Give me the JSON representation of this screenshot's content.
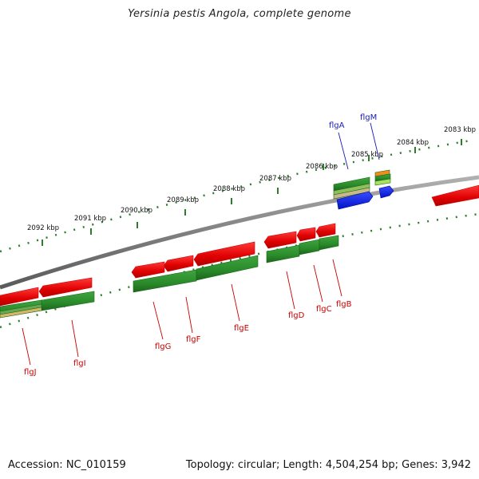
{
  "title": "Yersinia pestis Angola, complete genome",
  "footer": {
    "accession": "Accession: NC_010159",
    "summary": "Topology: circular; Length: 4,504,254 bp; Genes: 3,942"
  },
  "colors": {
    "backbone": "#808080",
    "gene_forward": "#e00000",
    "gene_cds": "#2a8a2a",
    "tick": "#2e7d2e",
    "label_red": "#c80000",
    "label_blue": "#1a1ab8",
    "blue_feature": "#0a1ee6",
    "orange_feature": "#f08c1a"
  },
  "scale": {
    "ticks": [
      {
        "kb": 2083,
        "label": "2083 kbp"
      },
      {
        "kb": 2084,
        "label": "2084 kbp"
      },
      {
        "kb": 2085,
        "label": "2085 kbp"
      },
      {
        "kb": 2086,
        "label": "2086 kbp"
      },
      {
        "kb": 2087,
        "label": "2087 kbp"
      },
      {
        "kb": 2088,
        "label": "2088 kbp"
      },
      {
        "kb": 2089,
        "label": "2089 kbp"
      },
      {
        "kb": 2090,
        "label": "2090 kbp"
      },
      {
        "kb": 2091,
        "label": "2091 kbp"
      },
      {
        "kb": 2092,
        "label": "2092 kbp"
      }
    ]
  },
  "genes": [
    {
      "name": "flgJ",
      "color": "red"
    },
    {
      "name": "flgI",
      "color": "red"
    },
    {
      "name": "flgG",
      "color": "red"
    },
    {
      "name": "flgF",
      "color": "red"
    },
    {
      "name": "flgE",
      "color": "red"
    },
    {
      "name": "flgD",
      "color": "red"
    },
    {
      "name": "flgC",
      "color": "red"
    },
    {
      "name": "flgB",
      "color": "red"
    },
    {
      "name": "flgA",
      "color": "blue"
    },
    {
      "name": "flgM",
      "color": "blue"
    }
  ]
}
